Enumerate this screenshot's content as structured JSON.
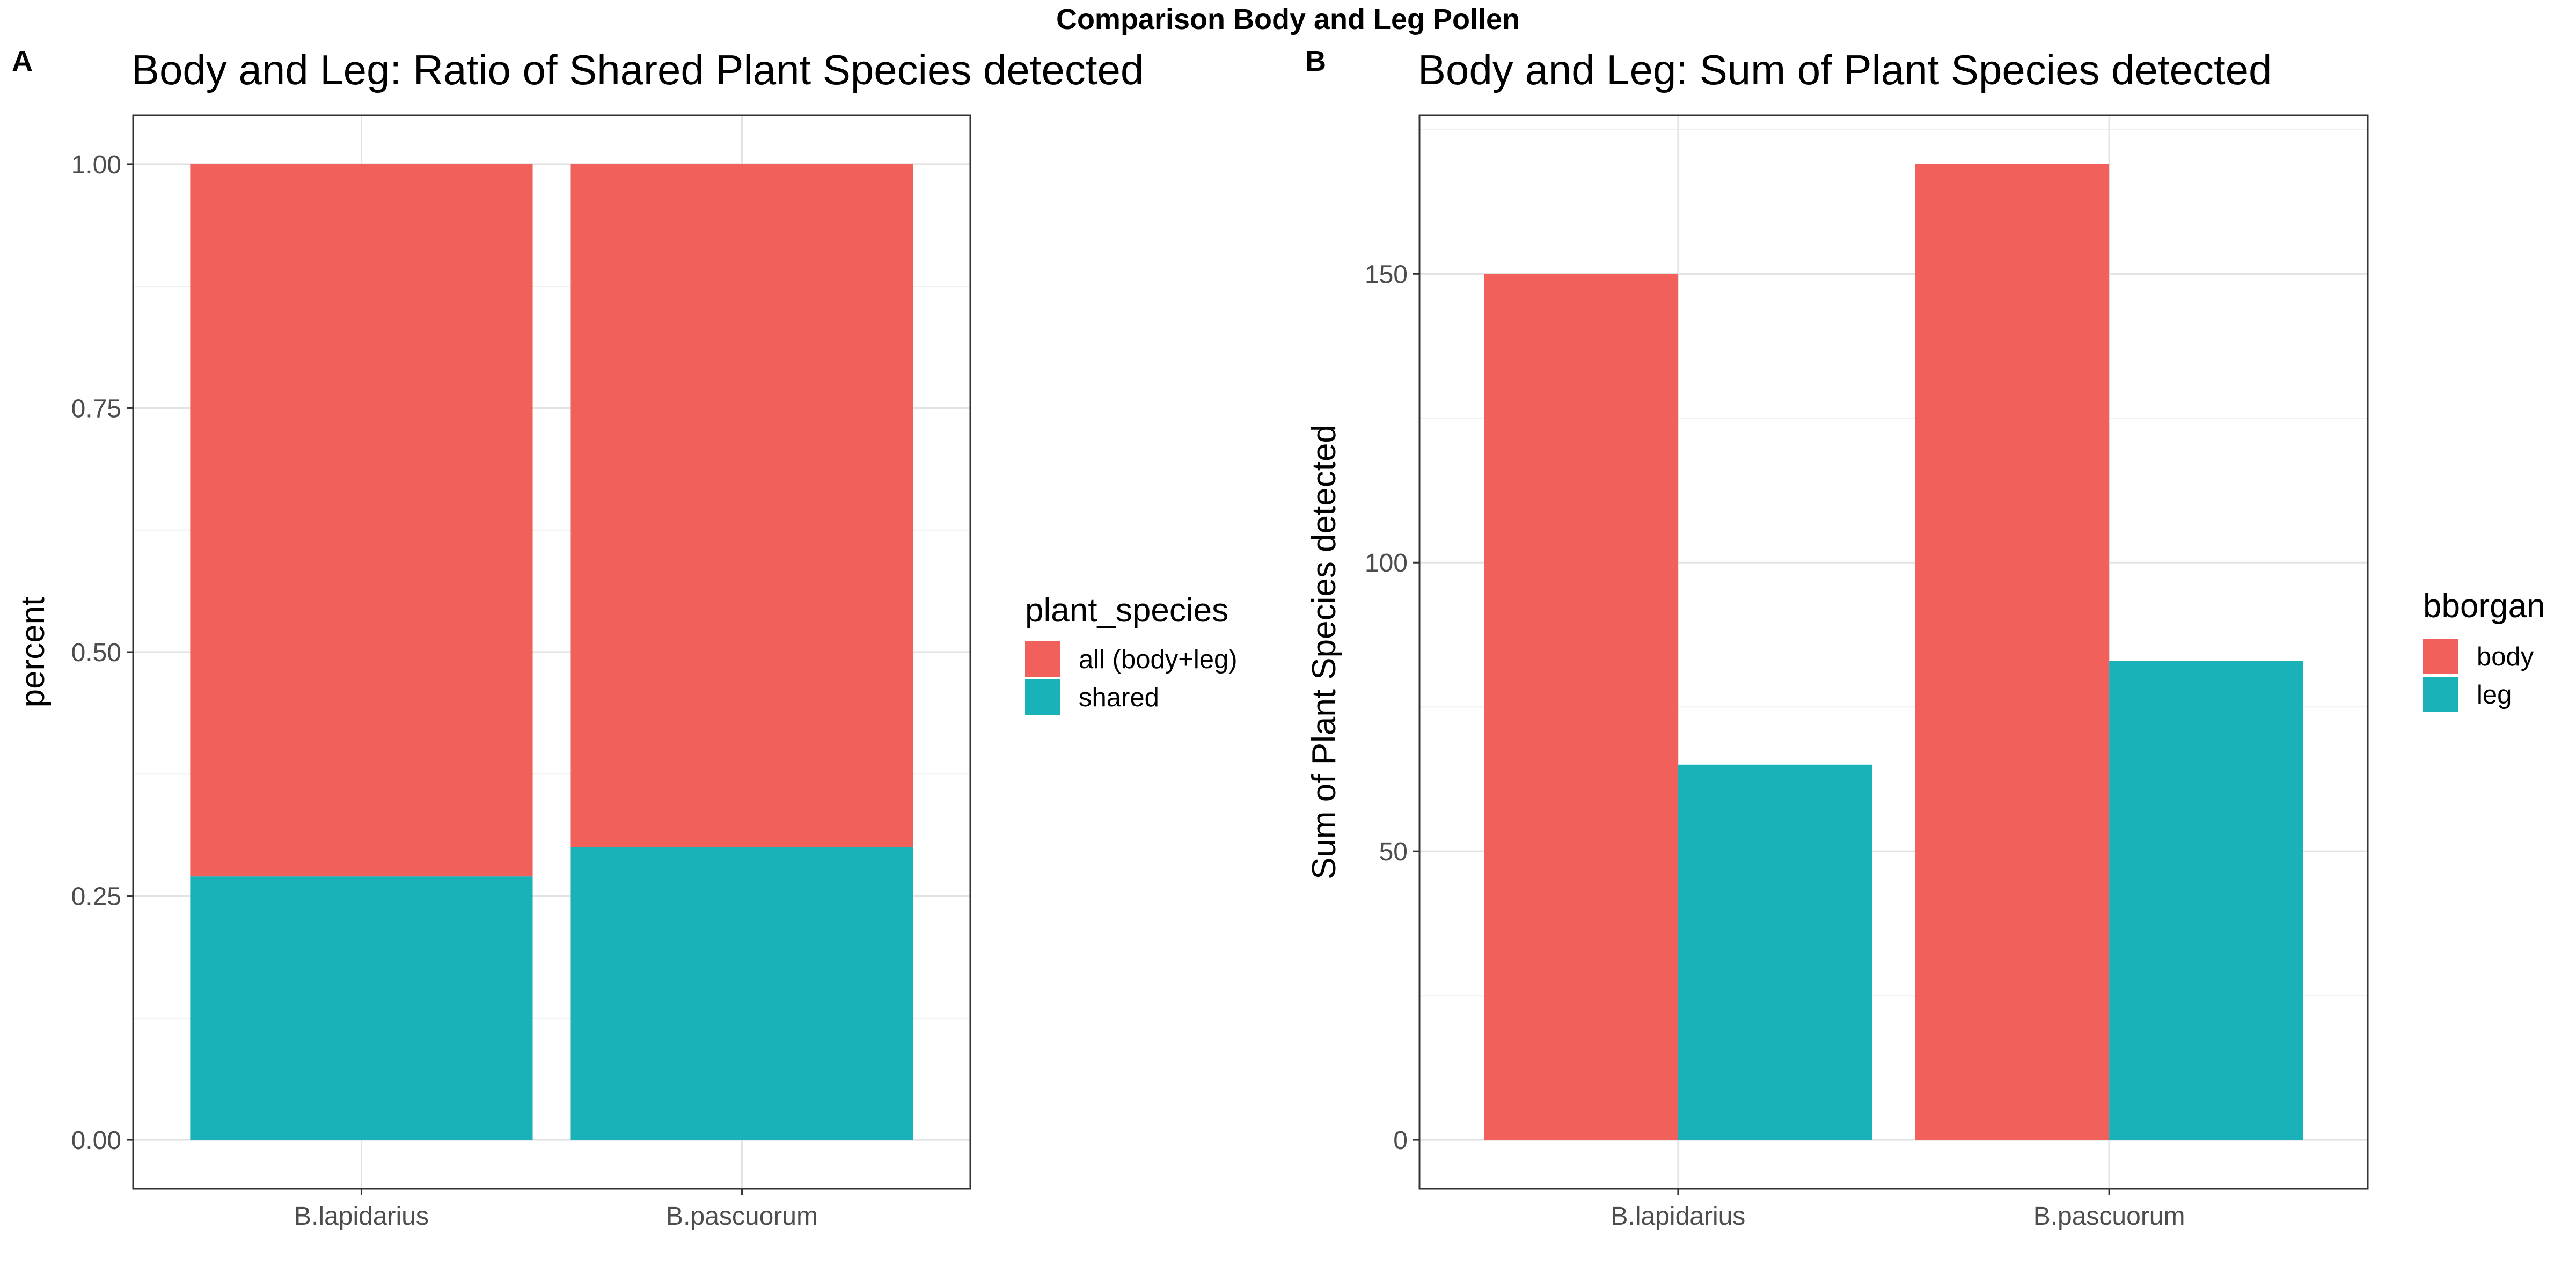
{
  "figure_title": "Comparison Body and Leg Pollen",
  "chart_data": [
    {
      "panel": "A",
      "type": "bar",
      "stacked": true,
      "title": "Body and Leg: Ratio of Shared Plant Species detected",
      "xlabel": "",
      "ylabel": "percent",
      "categories": [
        "B.lapidarius",
        "B.pascuorum"
      ],
      "series": [
        {
          "name": "shared",
          "color": "#19B2B8",
          "values": [
            0.27,
            0.3
          ]
        },
        {
          "name": "all (body+leg)",
          "color": "#F2605C",
          "values": [
            0.73,
            0.7
          ]
        }
      ],
      "ylim": [
        -0.05,
        1.05
      ],
      "yticks": [
        0.0,
        0.25,
        0.5,
        0.75,
        1.0
      ],
      "ytick_labels": [
        "0.00",
        "0.25",
        "0.50",
        "0.75",
        "1.00"
      ],
      "legend": {
        "title": "plant_species",
        "position": "right",
        "entries": [
          "all (body+leg)",
          "shared"
        ]
      },
      "grid": true
    },
    {
      "panel": "B",
      "type": "bar",
      "stacked": false,
      "title": "Body and Leg: Sum of Plant Species detected",
      "xlabel": "",
      "ylabel": "Sum of Plant Species detected",
      "categories": [
        "B.lapidarius",
        "B.pascuorum"
      ],
      "series": [
        {
          "name": "body",
          "color": "#F2605C",
          "values": [
            150,
            169
          ]
        },
        {
          "name": "leg",
          "color": "#19B2B8",
          "values": [
            65,
            83
          ]
        }
      ],
      "ylim": [
        -8.45,
        177.45
      ],
      "yticks": [
        0,
        50,
        100,
        150
      ],
      "ytick_labels": [
        "0",
        "50",
        "100",
        "150"
      ],
      "legend": {
        "title": "bborgan",
        "position": "right",
        "entries": [
          "body",
          "leg"
        ]
      },
      "grid": true
    }
  ]
}
